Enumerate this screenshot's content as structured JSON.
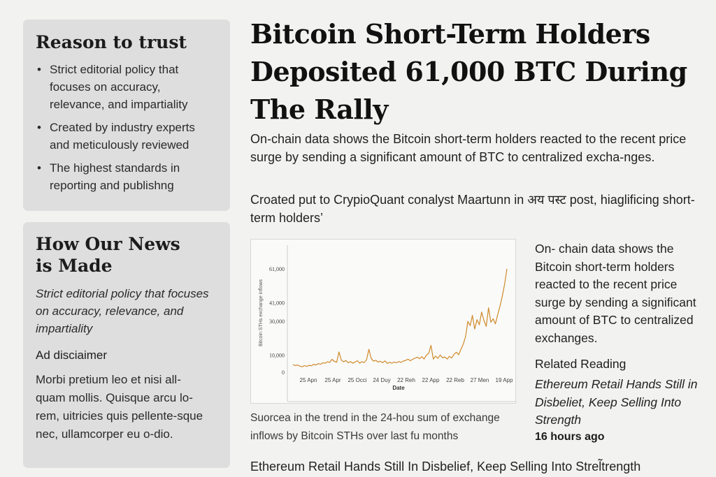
{
  "trust": {
    "title": "Reason to trust",
    "items": [
      "Strict editorial policy that focuses on accuracy, relevance, and impartiality",
      "Created by industry experts and meticulously reviewed",
      "The highest standards in reporting and publishng"
    ]
  },
  "news": {
    "title": "How Our News is Made",
    "description": "Strict editorial policy that focuses on accuracy, relevance, and impartiality",
    "ad_title": "Ad disciaimer",
    "ad_text": "Morbi pretium leo et nisi all-quam mollis. Quisque arcu lo-rem, uitricies quis pellente-sque nec, ullamcorper eu o-dio."
  },
  "article": {
    "headline": "Bitcoin Short-Term Holders Deposited 61,000 BTC During The Rally",
    "lede": "On-chain data shows the Bitcoin short-term holders reacted to the recent price surge by sending a significant amount of BTC to centralized excha-nges.",
    "quote": "Croated put to CrypioQuant conalyst Maartunn in अय पस्ट post, hiaglificing short-term holders’",
    "caption": "Suorcea in the trend in the 24-hou sum of exchange inflows by Bitcoin STHs over last fu months",
    "bottom_link": "Ethereum Retail Hands Still In Disbelief, Keep Selling Into Strel̃trength"
  },
  "sidebar": {
    "text": "On- chain data shows the Bitcoin short-term holders reacted to the recent price surge by sending a significant amount of BTC to centralized exchanges.",
    "related_title": "Related Reading",
    "related_link": "Ethereum Retail Hands Still in Disbeliet, Keep Selling Into Strength",
    "related_time": "16 hours ago"
  },
  "chart_data": {
    "type": "line",
    "title": "",
    "xlabel": "Date",
    "ylabel": "Bitcoin STHs exchange inflows",
    "ylim": [
      0,
      70000
    ],
    "yticks": [
      0,
      10000,
      30000,
      41000,
      61000
    ],
    "ytick_labels": [
      "0",
      "10,000",
      "30,000",
      "41,000",
      "61,000"
    ],
    "xtick_labels": [
      "25 Apn",
      "25 Apr",
      "25 Occi",
      "24 Duy",
      "22 Reh",
      "22 App",
      "22 Reb",
      "27 Men",
      "19 App"
    ],
    "line_color": "#d08a2a",
    "series": [
      {
        "values": [
          4500,
          3900,
          4300,
          3600,
          3200,
          3900,
          3400,
          4100,
          3800,
          4700,
          4200,
          5100,
          4700,
          5600,
          5300,
          6200,
          5800,
          7600,
          6400,
          5900,
          12000,
          7200,
          6100,
          6900,
          5600,
          6300,
          5400,
          6000,
          6800,
          5400,
          6200,
          5700,
          7500,
          13500,
          8100,
          6500,
          7100,
          6000,
          6500,
          5600,
          6700,
          5200,
          5900,
          5300,
          6000,
          5600,
          6300,
          5800,
          6600,
          7000,
          7700,
          6800,
          7600,
          8200,
          8900,
          8000,
          9200,
          7800,
          10100,
          11200,
          15800,
          7700,
          9500,
          8200,
          10200,
          8500,
          9000,
          7800,
          9400,
          8400,
          10500,
          11800,
          10300,
          13500,
          16500,
          21000,
          30000,
          27500,
          33500,
          25500,
          31000,
          28000,
          35500,
          30500,
          27000,
          38000,
          29500,
          31500,
          28500,
          34000,
          39000,
          45000,
          52000,
          61000
        ]
      }
    ]
  }
}
